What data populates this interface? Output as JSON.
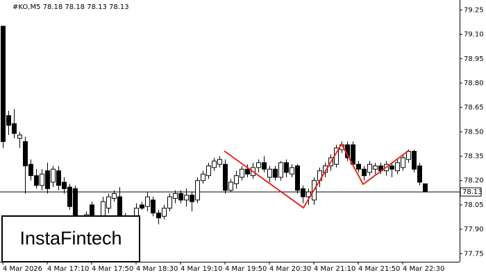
{
  "chart_data": {
    "type": "candlestick",
    "title": "#KO,M5  78.18 78.18 78.13 78.13",
    "logo": "InstaFintech",
    "categories": [
      "4 Mar 2026",
      null,
      null,
      null,
      null,
      null,
      null,
      null,
      "4 Mar 17:10",
      null,
      null,
      null,
      null,
      null,
      null,
      null,
      "4 Mar 17:50",
      null,
      null,
      null,
      null,
      null,
      null,
      null,
      "4 Mar 18:30",
      null,
      null,
      null,
      null,
      null,
      null,
      null,
      "4 Mar 19:10",
      null,
      null,
      null,
      null,
      null,
      null,
      null,
      "4 Mar 19:50",
      null,
      null,
      null,
      null,
      null,
      null,
      null,
      "4 Mar 20:30",
      null,
      null,
      null,
      null,
      null,
      null,
      null,
      "4 Mar 21:10",
      null,
      null,
      null,
      null,
      null,
      null,
      null,
      "4 Mar 21:50",
      null,
      null,
      null,
      null,
      null,
      null,
      null,
      "4 Mar 22:30",
      null,
      null,
      null,
      null
    ],
    "open": [
      79.15,
      78.6,
      78.55,
      78.46,
      78.44,
      78.3,
      78.23,
      78.17,
      78.26,
      78.19,
      78.26,
      78.19,
      78.16,
      78.15,
      77.87,
      77.96,
      78.05,
      77.91,
      77.95,
      78.03,
      78.09,
      78.1,
      77.98,
      77.93,
      77.88,
      78.05,
      78.04,
      78.08,
      78.0,
      77.98,
      78.03,
      78.09,
      78.12,
      78.08,
      78.11,
      78.08,
      78.2,
      78.23,
      78.28,
      78.3,
      78.3,
      78.14,
      78.18,
      78.22,
      78.27,
      78.23,
      78.28,
      78.31,
      78.22,
      78.27,
      78.22,
      78.31,
      78.24,
      78.29,
      78.15,
      78.1,
      78.08,
      78.2,
      78.25,
      78.29,
      78.3,
      78.39,
      78.42,
      78.42,
      78.3,
      78.27,
      78.25,
      78.27,
      78.29,
      78.26,
      78.29,
      78.26,
      78.28,
      78.33,
      78.38,
      78.29,
      78.18
    ],
    "high": [
      79.15,
      78.63,
      78.64,
      78.5,
      78.47,
      78.33,
      78.27,
      78.27,
      78.31,
      78.29,
      78.29,
      78.22,
      78.18,
      78.17,
      77.98,
      78.01,
      78.07,
      77.98,
      78.1,
      78.12,
      78.14,
      78.16,
      78.0,
      77.96,
      78.06,
      78.07,
      78.13,
      78.1,
      78.02,
      78.05,
      78.12,
      78.14,
      78.14,
      78.15,
      78.13,
      78.22,
      78.26,
      78.31,
      78.34,
      78.35,
      78.33,
      78.21,
      78.26,
      78.29,
      78.3,
      78.31,
      78.33,
      78.35,
      78.29,
      78.29,
      78.32,
      78.33,
      78.3,
      78.3,
      78.17,
      78.15,
      78.22,
      78.28,
      78.31,
      78.36,
      78.42,
      78.44,
      78.44,
      78.44,
      78.32,
      78.29,
      78.32,
      78.31,
      78.31,
      78.32,
      78.31,
      78.33,
      78.36,
      78.39,
      78.39,
      78.31,
      78.18
    ],
    "low": [
      78.4,
      78.48,
      78.46,
      78.4,
      78.12,
      78.2,
      78.15,
      78.14,
      78.12,
      78.16,
      78.14,
      78.12,
      78.02,
      77.86,
      77.84,
      77.93,
      77.84,
      77.89,
      77.93,
      78.0,
      78.07,
      77.96,
      77.88,
      77.84,
      77.86,
      78.02,
      78.01,
      77.98,
      77.93,
      77.96,
      78.01,
      78.06,
      78.06,
      78.04,
      78.01,
      78.06,
      78.18,
      78.21,
      78.26,
      78.28,
      78.12,
      78.13,
      78.15,
      78.2,
      78.22,
      78.21,
      78.25,
      78.25,
      78.19,
      78.2,
      78.2,
      78.22,
      78.22,
      78.12,
      78.06,
      78.05,
      78.05,
      78.16,
      78.22,
      78.26,
      78.28,
      78.37,
      78.32,
      78.29,
      78.25,
      78.2,
      78.23,
      78.24,
      78.24,
      78.23,
      78.22,
      78.24,
      78.26,
      78.31,
      78.25,
      78.17,
      78.13
    ],
    "close": [
      78.44,
      78.54,
      78.49,
      78.48,
      78.29,
      78.23,
      78.17,
      78.24,
      78.15,
      78.27,
      78.17,
      78.15,
      78.04,
      77.87,
      77.95,
      77.99,
      77.91,
      77.96,
      78.07,
      78.1,
      78.12,
      77.98,
      77.91,
      77.86,
      78.03,
      78.03,
      78.1,
      78.0,
      77.97,
      78.03,
      78.1,
      78.12,
      78.08,
      78.11,
      78.07,
      78.2,
      78.24,
      78.29,
      78.32,
      78.33,
      78.14,
      78.19,
      78.23,
      78.27,
      78.24,
      78.28,
      78.31,
      78.27,
      78.27,
      78.22,
      78.31,
      78.25,
      78.28,
      78.14,
      78.1,
      78.13,
      78.2,
      78.26,
      78.29,
      78.34,
      78.4,
      78.42,
      78.34,
      78.3,
      78.27,
      78.23,
      78.3,
      78.29,
      78.26,
      78.3,
      78.27,
      78.31,
      78.34,
      78.38,
      78.27,
      78.19,
      78.13
    ],
    "last_price": 78.13,
    "ylim": [
      77.7,
      79.29
    ],
    "yticks": [
      79.25,
      {
        "value": 79.1,
        "label": "79.10"
      },
      78.95,
      {
        "value": 78.8,
        "label": "78.80"
      },
      78.65,
      {
        "value": 78.5,
        "label": "78.50"
      },
      78.35,
      {
        "value": 78.2,
        "label": "78.20"
      },
      78.05,
      {
        "value": 77.9,
        "label": "77.90"
      },
      77.75
    ],
    "up_color": "#ffffff",
    "down_color": "#000000"
  }
}
